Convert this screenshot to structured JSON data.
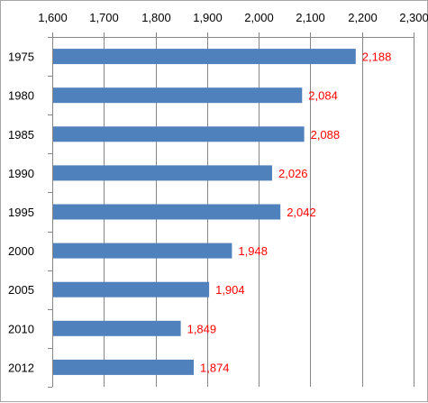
{
  "chart_data": {
    "type": "bar",
    "orientation": "horizontal",
    "categories": [
      "1975",
      "1980",
      "1985",
      "1990",
      "1995",
      "2000",
      "2005",
      "2010",
      "2012"
    ],
    "values": [
      2188,
      2084,
      2088,
      2026,
      2042,
      1948,
      1904,
      1849,
      1874
    ],
    "value_labels": [
      "2,188",
      "2,084",
      "2,088",
      "2,026",
      "2,042",
      "1,948",
      "1,904",
      "1,849",
      "1,874"
    ],
    "xlim": [
      1600,
      2300
    ],
    "x_ticks": [
      1600,
      1700,
      1800,
      1900,
      2000,
      2100,
      2200,
      2300
    ],
    "x_tick_labels": [
      "1,600",
      "1,700",
      "1,800",
      "1,900",
      "2,000",
      "2,100",
      "2,200",
      "2,300"
    ],
    "x_axis_position": "top",
    "grid": true,
    "legend": "none",
    "colors": {
      "bar": "#4f81bd",
      "data_label": "#ff0000",
      "gridline": "#868686",
      "axis": "#868686"
    }
  }
}
